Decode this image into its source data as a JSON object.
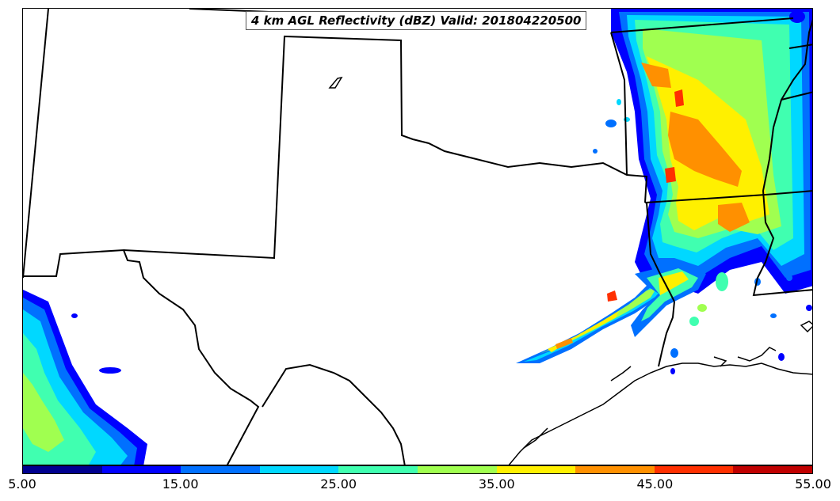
{
  "title": "4 km AGL Reflectivity (dBZ) Valid: 201804220500",
  "colorbar": {
    "ticks": [
      "5.00",
      "15.00",
      "25.00",
      "35.00",
      "45.00",
      "55.00"
    ],
    "colors": [
      "#00008f",
      "#0000ff",
      "#0070ff",
      "#00d8ff",
      "#40ffb0",
      "#a0ff50",
      "#fff000",
      "#ff9000",
      "#ff3000",
      "#c00000"
    ]
  }
}
